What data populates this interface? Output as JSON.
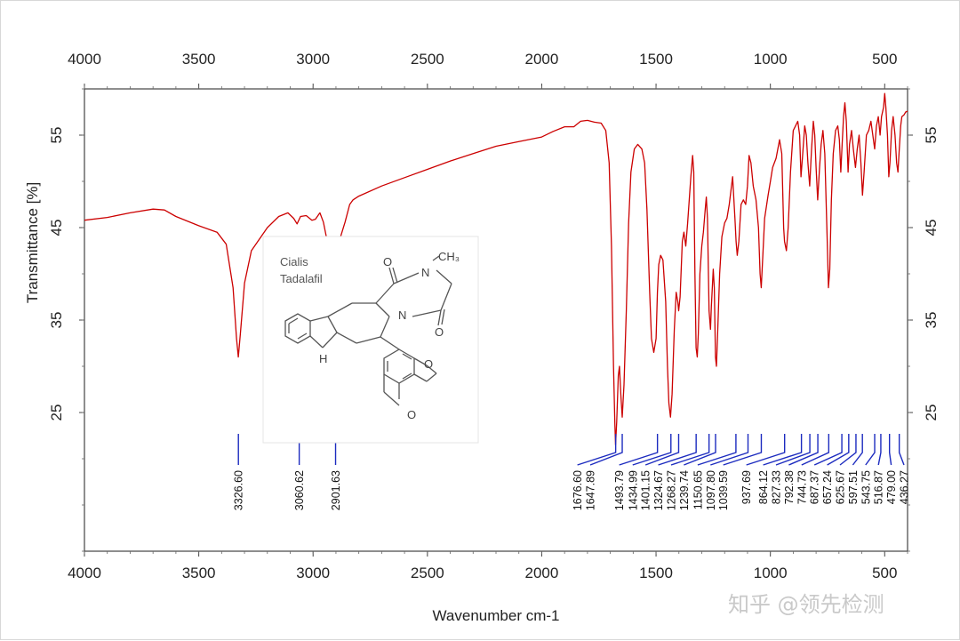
{
  "chart_data": {
    "type": "line",
    "xlabel": "Wavenumber cm-1",
    "ylabel": "Transmittance [%]",
    "x_reversed": true,
    "xlim": [
      4000,
      400
    ],
    "ylim": [
      10,
      60
    ],
    "x_ticks": [
      4000,
      3500,
      3000,
      2500,
      2000,
      1500,
      1000,
      500
    ],
    "y_ticks": [
      25,
      35,
      45,
      55
    ],
    "grid": false,
    "series": [
      {
        "color": "#cc0000",
        "points": [
          [
            4000,
            45.8
          ],
          [
            3900,
            46.1
          ],
          [
            3800,
            46.6
          ],
          [
            3700,
            47.0
          ],
          [
            3650,
            46.9
          ],
          [
            3600,
            46.2
          ],
          [
            3500,
            45.2
          ],
          [
            3420,
            44.5
          ],
          [
            3380,
            43.2
          ],
          [
            3350,
            38.5
          ],
          [
            3335,
            33.0
          ],
          [
            3327,
            31.0
          ],
          [
            3318,
            33.5
          ],
          [
            3300,
            39.0
          ],
          [
            3270,
            42.5
          ],
          [
            3200,
            45.0
          ],
          [
            3150,
            46.2
          ],
          [
            3110,
            46.6
          ],
          [
            3085,
            46.0
          ],
          [
            3070,
            45.4
          ],
          [
            3055,
            46.2
          ],
          [
            3030,
            46.3
          ],
          [
            3005,
            45.8
          ],
          [
            2990,
            45.9
          ],
          [
            2970,
            46.6
          ],
          [
            2955,
            45.6
          ],
          [
            2938,
            43.5
          ],
          [
            2920,
            41.2
          ],
          [
            2910,
            40.5
          ],
          [
            2900,
            41.0
          ],
          [
            2880,
            44.0
          ],
          [
            2860,
            45.6
          ],
          [
            2840,
            47.5
          ],
          [
            2825,
            48.0
          ],
          [
            2800,
            48.4
          ],
          [
            2700,
            49.5
          ],
          [
            2600,
            50.4
          ],
          [
            2500,
            51.3
          ],
          [
            2400,
            52.2
          ],
          [
            2300,
            53.0
          ],
          [
            2200,
            53.8
          ],
          [
            2100,
            54.3
          ],
          [
            2000,
            54.8
          ],
          [
            1950,
            55.4
          ],
          [
            1900,
            55.9
          ],
          [
            1860,
            55.9
          ],
          [
            1830,
            56.5
          ],
          [
            1800,
            56.6
          ],
          [
            1770,
            56.4
          ],
          [
            1740,
            56.3
          ],
          [
            1720,
            55.5
          ],
          [
            1705,
            52.0
          ],
          [
            1695,
            43.0
          ],
          [
            1686,
            30.0
          ],
          [
            1680,
            23.5
          ],
          [
            1677,
            21.5
          ],
          [
            1672,
            24.0
          ],
          [
            1665,
            29.0
          ],
          [
            1660,
            30.0
          ],
          [
            1654,
            27.0
          ],
          [
            1648,
            24.5
          ],
          [
            1640,
            28.0
          ],
          [
            1630,
            36.0
          ],
          [
            1620,
            45.5
          ],
          [
            1610,
            51.0
          ],
          [
            1595,
            53.5
          ],
          [
            1580,
            54.0
          ],
          [
            1562,
            53.5
          ],
          [
            1550,
            52.0
          ],
          [
            1540,
            47.0
          ],
          [
            1528,
            38.0
          ],
          [
            1520,
            33.0
          ],
          [
            1510,
            31.5
          ],
          [
            1500,
            33.0
          ],
          [
            1494,
            38.0
          ],
          [
            1488,
            41.0
          ],
          [
            1480,
            42.0
          ],
          [
            1470,
            41.5
          ],
          [
            1458,
            37.0
          ],
          [
            1450,
            30.0
          ],
          [
            1444,
            26.0
          ],
          [
            1437,
            24.5
          ],
          [
            1430,
            27.0
          ],
          [
            1420,
            34.0
          ],
          [
            1412,
            38.0
          ],
          [
            1405,
            37.0
          ],
          [
            1401,
            36.0
          ],
          [
            1395,
            37.5
          ],
          [
            1385,
            43.5
          ],
          [
            1378,
            44.5
          ],
          [
            1370,
            43.0
          ],
          [
            1362,
            45.5
          ],
          [
            1355,
            48.0
          ],
          [
            1348,
            50.5
          ],
          [
            1340,
            52.8
          ],
          [
            1335,
            51.0
          ],
          [
            1330,
            40.0
          ],
          [
            1325,
            32.0
          ],
          [
            1320,
            31.0
          ],
          [
            1315,
            33.5
          ],
          [
            1308,
            40.0
          ],
          [
            1300,
            43.0
          ],
          [
            1293,
            44.5
          ],
          [
            1285,
            47.0
          ],
          [
            1280,
            48.3
          ],
          [
            1275,
            46.0
          ],
          [
            1268,
            36.0
          ],
          [
            1262,
            34.0
          ],
          [
            1258,
            36.5
          ],
          [
            1250,
            40.5
          ],
          [
            1245,
            38.5
          ],
          [
            1240,
            31.0
          ],
          [
            1236,
            30.0
          ],
          [
            1230,
            34.0
          ],
          [
            1222,
            40.0
          ],
          [
            1212,
            44.0
          ],
          [
            1200,
            45.5
          ],
          [
            1190,
            46.0
          ],
          [
            1180,
            47.5
          ],
          [
            1165,
            50.5
          ],
          [
            1155,
            46.0
          ],
          [
            1150,
            43.5
          ],
          [
            1145,
            42.0
          ],
          [
            1138,
            43.5
          ],
          [
            1128,
            47.5
          ],
          [
            1118,
            48.0
          ],
          [
            1108,
            47.5
          ],
          [
            1100,
            49.5
          ],
          [
            1093,
            52.8
          ],
          [
            1085,
            52.0
          ],
          [
            1075,
            49.5
          ],
          [
            1063,
            48.0
          ],
          [
            1052,
            45.0
          ],
          [
            1045,
            40.0
          ],
          [
            1040,
            38.5
          ],
          [
            1033,
            42.0
          ],
          [
            1025,
            46.0
          ],
          [
            1010,
            48.5
          ],
          [
            1000,
            50.0
          ],
          [
            990,
            51.5
          ],
          [
            975,
            52.5
          ],
          [
            960,
            54.5
          ],
          [
            950,
            53.0
          ],
          [
            942,
            45.0
          ],
          [
            938,
            43.5
          ],
          [
            930,
            42.5
          ],
          [
            922,
            45.0
          ],
          [
            912,
            51.0
          ],
          [
            900,
            55.5
          ],
          [
            890,
            56.0
          ],
          [
            880,
            56.5
          ],
          [
            872,
            55.0
          ],
          [
            866,
            50.5
          ],
          [
            860,
            52.5
          ],
          [
            850,
            56.0
          ],
          [
            843,
            55.0
          ],
          [
            836,
            52.0
          ],
          [
            828,
            49.5
          ],
          [
            820,
            53.5
          ],
          [
            812,
            56.5
          ],
          [
            806,
            55.0
          ],
          [
            800,
            51.5
          ],
          [
            793,
            48.0
          ],
          [
            785,
            51.5
          ],
          [
            778,
            54.0
          ],
          [
            770,
            55.5
          ],
          [
            762,
            53.0
          ],
          [
            752,
            44.0
          ],
          [
            746,
            38.5
          ],
          [
            740,
            40.5
          ],
          [
            733,
            48.0
          ],
          [
            725,
            53.0
          ],
          [
            715,
            55.5
          ],
          [
            705,
            56.0
          ],
          [
            698,
            54.5
          ],
          [
            692,
            51.0
          ],
          [
            686,
            54.0
          ],
          [
            680,
            57.0
          ],
          [
            674,
            58.5
          ],
          [
            668,
            56.5
          ],
          [
            660,
            51.0
          ],
          [
            654,
            54.0
          ],
          [
            645,
            55.5
          ],
          [
            637,
            53.5
          ],
          [
            628,
            51.5
          ],
          [
            620,
            53.5
          ],
          [
            612,
            55.0
          ],
          [
            604,
            52.0
          ],
          [
            597,
            48.5
          ],
          [
            590,
            51.0
          ],
          [
            580,
            55.0
          ],
          [
            570,
            55.5
          ],
          [
            560,
            56.5
          ],
          [
            552,
            55.0
          ],
          [
            544,
            53.5
          ],
          [
            536,
            56.0
          ],
          [
            528,
            57.0
          ],
          [
            520,
            55.0
          ],
          [
            514,
            57.0
          ],
          [
            505,
            58.0
          ],
          [
            500,
            59.5
          ],
          [
            495,
            58.0
          ],
          [
            488,
            55.0
          ],
          [
            482,
            50.5
          ],
          [
            477,
            52.0
          ],
          [
            470,
            55.5
          ],
          [
            463,
            57.0
          ],
          [
            455,
            55.0
          ],
          [
            448,
            52.0
          ],
          [
            442,
            51.0
          ],
          [
            436,
            53.5
          ],
          [
            430,
            56.0
          ],
          [
            425,
            57.0
          ],
          [
            415,
            57.2
          ],
          [
            408,
            57.5
          ],
          [
            400,
            57.6
          ]
        ]
      }
    ],
    "peak_labels": [
      "3326.60",
      "3060.62",
      "2901.63",
      "1676.60",
      "1647.89",
      "1493.79",
      "1434.99",
      "1401.15",
      "1324.67",
      "1268.27",
      "1239.74",
      "1150.65",
      "1097.80",
      "1039.59",
      "937.69",
      "864.12",
      "827.33",
      "792.38",
      "744.73",
      "687.37",
      "657.24",
      "625.67",
      "597.51",
      "543.75",
      "516.87",
      "479.00",
      "436.27"
    ],
    "peak_positions": [
      3326.6,
      3060.62,
      2901.63,
      1676.6,
      1647.89,
      1493.79,
      1434.99,
      1401.15,
      1324.67,
      1268.27,
      1239.74,
      1150.65,
      1097.8,
      1039.59,
      937.69,
      864.12,
      827.33,
      792.38,
      744.73,
      687.37,
      657.24,
      625.67,
      597.51,
      543.75,
      516.87,
      479.0,
      436.27
    ]
  },
  "inset": {
    "title_line1": "Cialis",
    "title_line2": "Tadalafil",
    "atom_o_top": "O",
    "atom_n_methyl": "N",
    "atom_ch3": "CH₃",
    "atom_n_ring": "N",
    "atom_o_right": "O",
    "atom_nh": "H",
    "atom_n_indole": "N",
    "atom_o_diox1": "O",
    "atom_o_diox2": "O"
  },
  "watermark": "知乎 @领先检测"
}
